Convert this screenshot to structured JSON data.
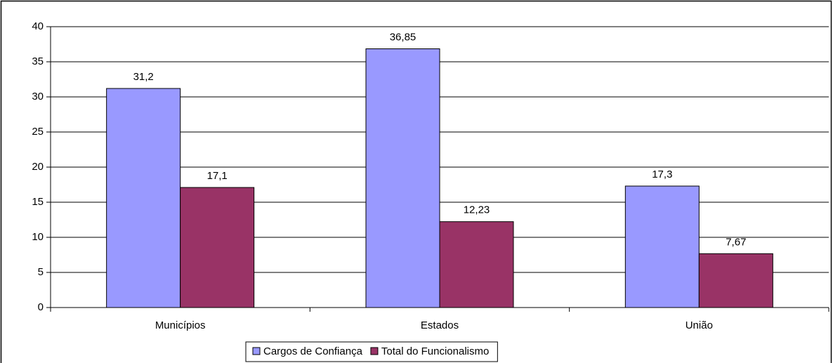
{
  "chart_data": {
    "type": "bar",
    "categories": [
      "Municípios",
      "Estados",
      "União"
    ],
    "series": [
      {
        "name": "Cargos de Confiança",
        "color": "#9999ff",
        "values": [
          31.2,
          36.85,
          17.3
        ],
        "value_labels": [
          "31,2",
          "36,85",
          "17,3"
        ]
      },
      {
        "name": "Total do Funcionalismo",
        "color": "#993366",
        "values": [
          17.1,
          12.23,
          7.67
        ],
        "value_labels": [
          "17,1",
          "12,23",
          "7,67"
        ]
      }
    ],
    "ylim": [
      0,
      40
    ],
    "yticks": [
      0,
      5,
      10,
      15,
      20,
      25,
      30,
      35,
      40
    ],
    "grid": true,
    "legend": "bottom"
  }
}
